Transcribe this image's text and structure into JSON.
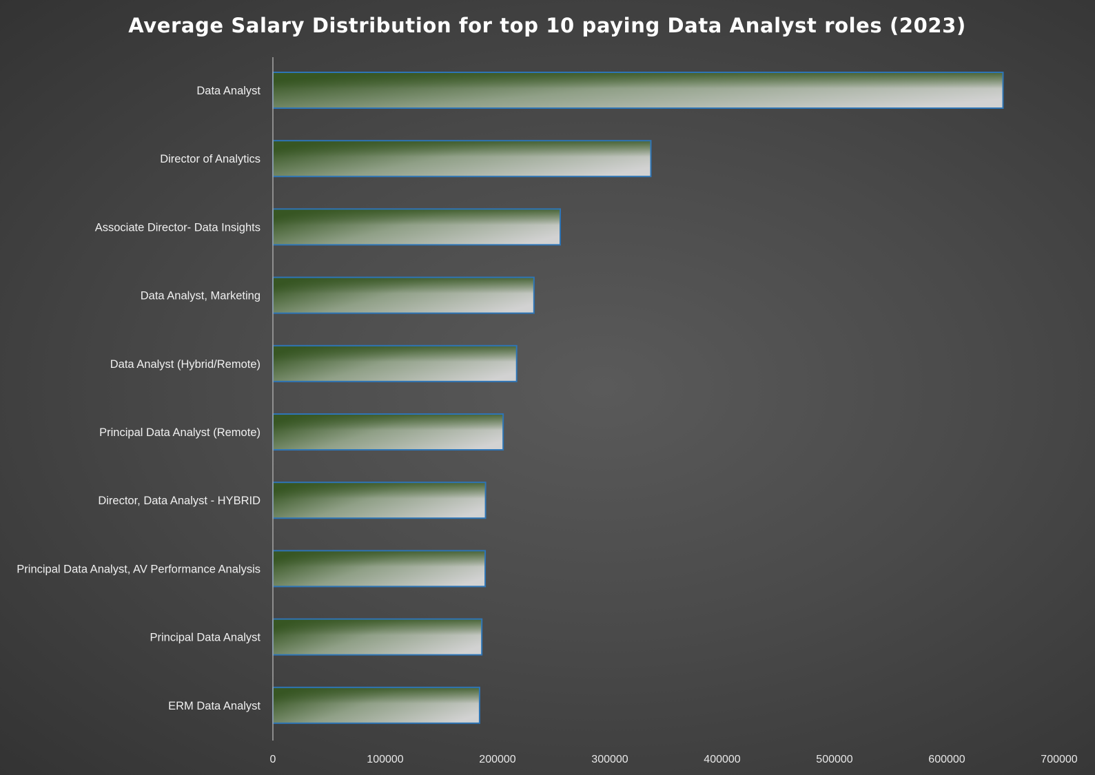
{
  "chart_data": {
    "type": "bar",
    "orientation": "horizontal",
    "title": "Average Salary Distribution for top 10 paying Data Analyst roles (2023)",
    "xlabel": "",
    "ylabel": "",
    "categories": [
      "Data Analyst",
      "Director of Analytics",
      "Associate Director- Data Insights",
      "Data Analyst, Marketing",
      "Data Analyst (Hybrid/Remote)",
      "Principal Data Analyst (Remote)",
      "Director, Data Analyst - HYBRID",
      "Principal Data Analyst, AV Performance Analysis",
      "Principal Data Analyst",
      "ERM Data Analyst"
    ],
    "values": [
      650000,
      336500,
      255829.5,
      232423,
      217000,
      205000,
      189309,
      189000,
      186000,
      184000
    ],
    "xlim": [
      0,
      700000
    ],
    "xticks": [
      "0",
      "100000",
      "200000",
      "300000",
      "400000",
      "500000",
      "600000",
      "700000"
    ],
    "grid": false,
    "legend": "none",
    "colors": {
      "bar_dark": "#375623",
      "bar_light": "#d0d0d0",
      "bar_border": "#2e75b6",
      "axis_line": "#a6a6a6"
    }
  }
}
